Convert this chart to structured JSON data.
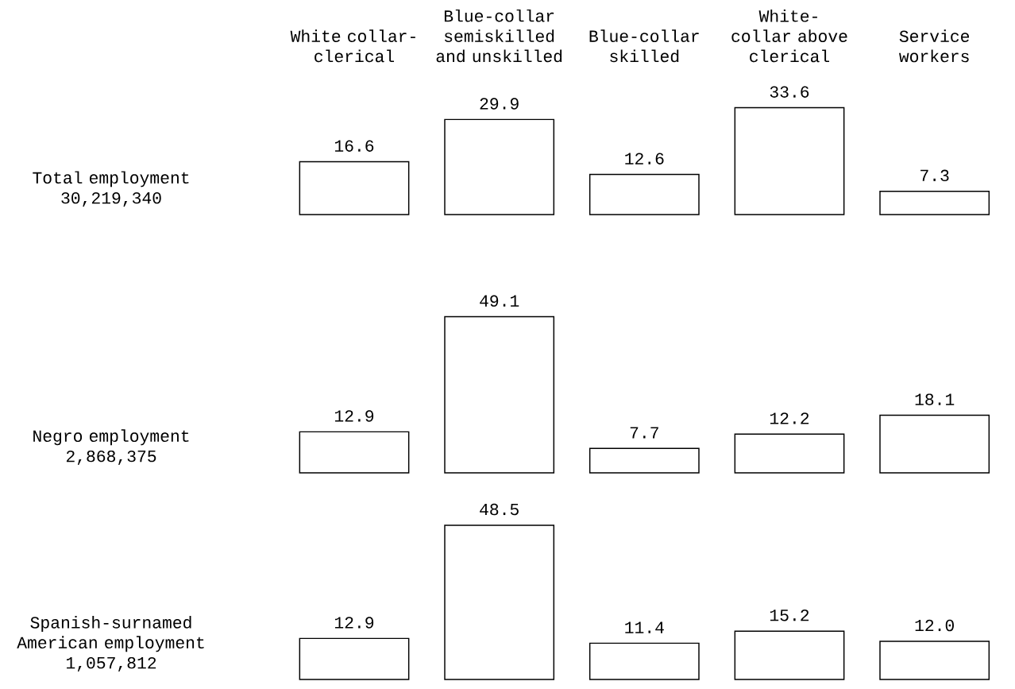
{
  "chart_data": [
    {
      "type": "bar",
      "title": "Total employment 30,219,340",
      "categories": [
        "White collar-clerical",
        "Blue-collar semiskilled and unskilled",
        "Blue-collar skilled",
        "White-collar above clerical",
        "Service workers"
      ],
      "values": [
        16.6,
        29.9,
        12.6,
        33.6,
        7.3
      ],
      "color": "#000000",
      "data_labels": true
    },
    {
      "type": "bar",
      "title": "Negro employment 2,868,375",
      "categories": [
        null,
        null,
        null,
        null,
        null
      ],
      "values": [
        12.9,
        49.1,
        7.7,
        12.2,
        18.1
      ],
      "color": "#000000",
      "data_labels": true
    },
    {
      "type": "bar",
      "title": "Spanish-surnamed American employment 1,057,812",
      "categories": [
        null,
        null,
        null,
        null,
        null
      ],
      "values": [
        12.9,
        48.5,
        11.4,
        15.2,
        12.0
      ],
      "value_labels": [
        "12.9",
        "48.5",
        "11.4",
        "15.2",
        "12.0"
      ],
      "color": "#000000"
    }
  ]
}
